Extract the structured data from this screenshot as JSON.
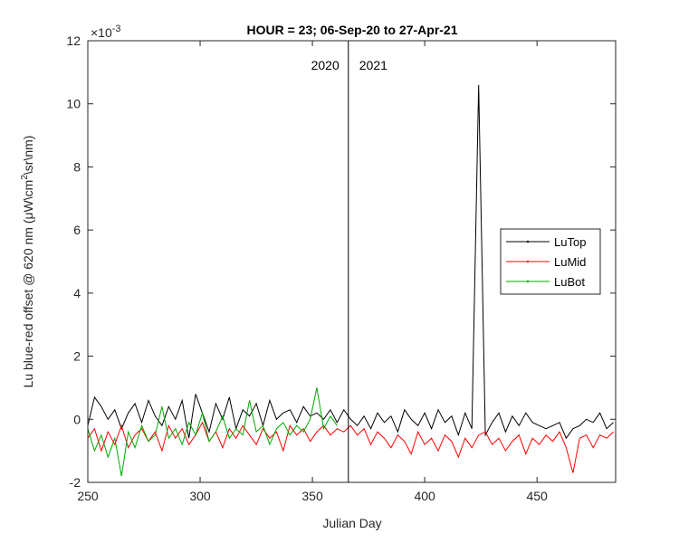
{
  "chart_data": {
    "type": "line",
    "title": "HOUR = 23; 06-Sep-20 to 27-Apr-21",
    "xlabel": "Julian Day",
    "ylabel": [
      "Lu blue-red offset @ 620 nm (μW\\cm",
      "2",
      "\\sr\\nm)"
    ],
    "y_multiplier": "×10",
    "y_exponent": "-3",
    "xlim": [
      250,
      485
    ],
    "ylim": [
      -2,
      12
    ],
    "xticks": [
      250,
      300,
      350,
      400,
      450
    ],
    "yticks": [
      -2,
      0,
      2,
      4,
      6,
      8,
      10,
      12
    ],
    "vline": 366,
    "annotations": [
      "2020",
      "2021"
    ],
    "legend_position": "right",
    "x": [
      250,
      253,
      256,
      259,
      262,
      265,
      268,
      271,
      274,
      277,
      280,
      283,
      286,
      289,
      292,
      295,
      298,
      301,
      304,
      307,
      310,
      313,
      316,
      319,
      322,
      325,
      328,
      331,
      334,
      337,
      340,
      343,
      346,
      349,
      352,
      355,
      358,
      361,
      364,
      367,
      370,
      373,
      376,
      379,
      382,
      385,
      388,
      391,
      394,
      397,
      400,
      403,
      406,
      409,
      412,
      415,
      418,
      421,
      424,
      427,
      430,
      433,
      436,
      439,
      442,
      445,
      448,
      451,
      454,
      457,
      460,
      463,
      466,
      469,
      472,
      475,
      478,
      481,
      484
    ],
    "series": [
      {
        "name": "LuTop",
        "color": "#000000",
        "values": [
          -0.2,
          0.7,
          0.4,
          0.0,
          0.3,
          -0.3,
          0.2,
          0.5,
          -0.1,
          0.6,
          0.1,
          -0.2,
          0.4,
          0.0,
          0.6,
          -0.6,
          0.8,
          0.2,
          -0.4,
          0.5,
          0.0,
          0.7,
          -0.3,
          0.3,
          0.1,
          0.5,
          -0.2,
          0.6,
          0.0,
          0.2,
          0.3,
          -0.1,
          0.4,
          0.1,
          0.2,
          0.0,
          0.3,
          -0.1,
          0.3,
          0.0,
          -0.2,
          0.1,
          -0.3,
          0.2,
          -0.1,
          0.1,
          -0.4,
          0.3,
          0.0,
          -0.2,
          0.2,
          -0.3,
          0.3,
          -0.1,
          0.1,
          -0.5,
          0.2,
          -0.3,
          10.6,
          -0.5,
          -0.1,
          0.2,
          -0.4,
          0.1,
          -0.2,
          0.2,
          -0.1,
          -0.2,
          -0.3,
          -0.2,
          -0.1,
          -0.6,
          -0.3,
          -0.2,
          0.0,
          -0.1,
          0.2,
          -0.3,
          -0.1
        ]
      },
      {
        "name": "LuMid",
        "color": "#ff0000",
        "values": [
          -0.6,
          -0.3,
          -1.0,
          -0.4,
          -0.8,
          -0.2,
          -0.9,
          -0.5,
          -0.3,
          -0.7,
          -0.4,
          -1.0,
          -0.2,
          -0.6,
          -0.3,
          -0.8,
          -0.5,
          -0.1,
          -0.7,
          -0.4,
          -0.9,
          -0.3,
          -0.6,
          -0.2,
          -0.5,
          -0.8,
          -0.3,
          -0.6,
          -0.4,
          -1.0,
          -0.2,
          -0.5,
          -0.3,
          -0.7,
          -0.4,
          -0.2,
          -0.5,
          -0.3,
          -0.4,
          -0.2,
          -0.5,
          -0.3,
          -0.8,
          -0.4,
          -0.6,
          -0.9,
          -0.5,
          -0.7,
          -1.1,
          -0.4,
          -0.8,
          -0.6,
          -1.0,
          -0.5,
          -0.7,
          -1.2,
          -0.6,
          -0.9,
          -0.5,
          -0.4,
          -0.8,
          -0.6,
          -1.0,
          -0.7,
          -0.5,
          -1.1,
          -0.6,
          -0.8,
          -0.5,
          -0.7,
          -0.4,
          -0.9,
          -1.7,
          -0.6,
          -0.5,
          -0.9,
          -0.5,
          -0.6,
          -0.4
        ]
      },
      {
        "name": "LuBot",
        "color": "#00aa00",
        "values": [
          -0.3,
          -1.0,
          -0.5,
          -1.2,
          -0.6,
          -1.8,
          -0.4,
          -0.9,
          -0.2,
          -0.7,
          -0.5,
          0.4,
          -0.6,
          -0.3,
          -0.8,
          -0.1,
          -0.5,
          0.2,
          -0.7,
          -0.4,
          0.1,
          -0.6,
          -0.3,
          -0.5,
          0.6,
          -0.4,
          -0.2,
          -0.8,
          -0.3,
          -0.1,
          -0.5,
          -0.2,
          -0.4,
          0.0,
          1.0,
          -0.3,
          0.1,
          -0.2,
          null,
          null,
          null,
          null,
          null,
          null,
          null,
          null,
          null,
          null,
          null,
          null,
          null,
          null,
          null,
          null,
          null,
          null,
          null,
          null,
          null,
          null,
          null,
          null,
          null,
          null,
          null,
          null,
          null,
          null,
          null,
          null,
          null,
          null,
          null,
          null,
          null,
          null,
          null,
          null,
          null
        ]
      }
    ]
  }
}
